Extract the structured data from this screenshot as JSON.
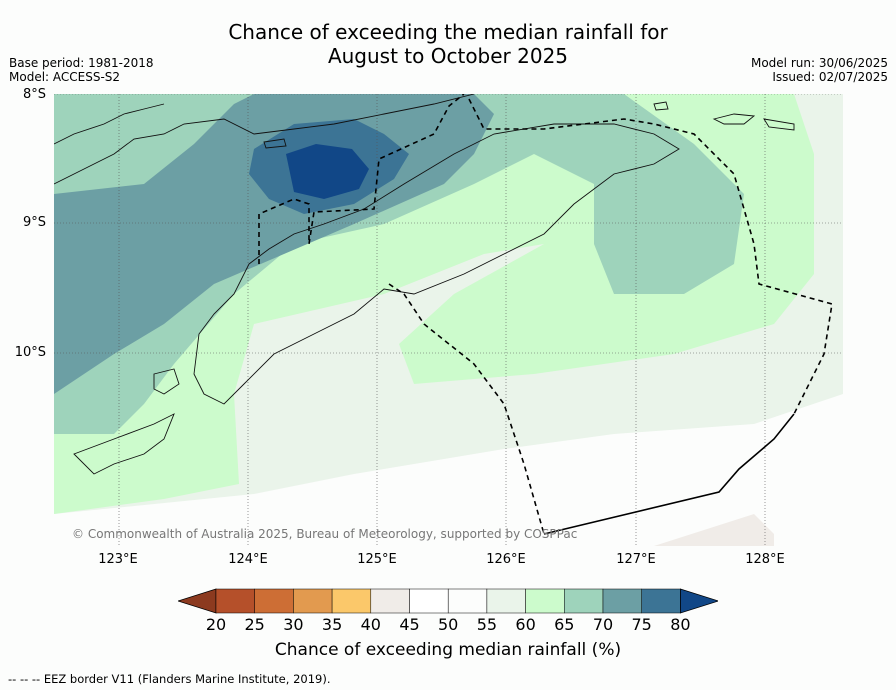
{
  "title": {
    "line1": "Chance of exceeding the median rainfall for",
    "line2": "August to October 2025"
  },
  "meta_left": {
    "base_period": "Base period: 1981-2018",
    "model": "Model: ACCESS-S2"
  },
  "meta_right": {
    "model_run": "Model run: 30/06/2025",
    "issued": "Issued: 02/07/2025"
  },
  "map": {
    "lat_labels": [
      "8°S",
      "9°S",
      "10°S"
    ],
    "lon_labels": [
      "123°E",
      "124°E",
      "125°E",
      "126°E",
      "127°E",
      "128°E"
    ],
    "copyright": "© Commonwealth of Australia 2025, Bureau of Meteorology, supported by COSPPac"
  },
  "colorbar": {
    "ticks": [
      "20",
      "25",
      "30",
      "35",
      "40",
      "45",
      "50",
      "55",
      "60",
      "65",
      "70",
      "75",
      "80"
    ],
    "colors": [
      "#8c3a1f",
      "#b5502a",
      "#cd6e35",
      "#e29a4f",
      "#fbc86a",
      "#f0ece8",
      "#ffffff",
      "#fcfdfc",
      "#eaf4ea",
      "#ccfbcc",
      "#9ed3bb",
      "#6c9fa4",
      "#3c7495",
      "#114787"
    ],
    "title": "Chance of exceeding median rainfall (%)"
  },
  "footer": "--  --  -- EEZ border V11 (Flanders Marine Institute, 2019)."
}
